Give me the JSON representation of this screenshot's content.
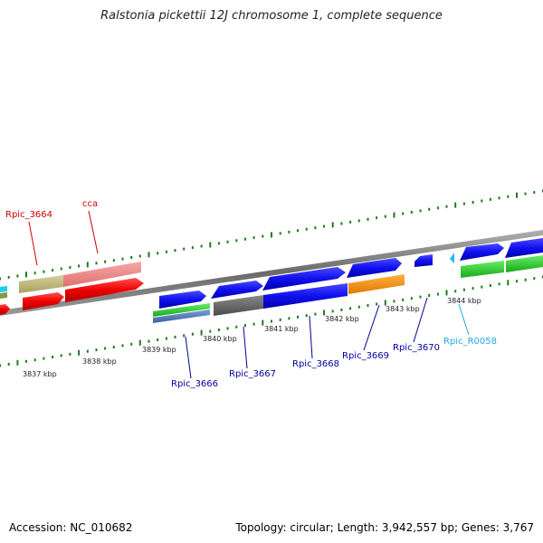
{
  "title": "Ralstonia pickettii 12J chromosome 1, complete sequence",
  "accession_label": "Accession: NC_010682",
  "summary_label": "Topology: circular; Length: 3,942,557 bp; Genes: 3,767",
  "colors": {
    "backbone": "#8a8a8a",
    "tick": "#1e7a1e",
    "label_red": "#cc0000",
    "label_blue": "#000099",
    "label_cyan": "#22aadd"
  },
  "scale_labels": [
    "3837 kbp",
    "3838 kbp",
    "3839 kbp",
    "3840 kbp",
    "3841 kbp",
    "3842 kbp",
    "3843 kbp",
    "3844 kbp"
  ],
  "gene_labels": [
    {
      "text": "Rpic_3664",
      "color": "#cc0000"
    },
    {
      "text": "cca",
      "color": "#cc0000"
    },
    {
      "text": "Rpic_3666",
      "color": "#000099"
    },
    {
      "text": "Rpic_3667",
      "color": "#000099"
    },
    {
      "text": "Rpic_3668",
      "color": "#000099"
    },
    {
      "text": "Rpic_3669",
      "color": "#000099"
    },
    {
      "text": "Rpic_3670",
      "color": "#000099"
    },
    {
      "text": "Rpic_R0058",
      "color": "#22aadd"
    }
  ]
}
